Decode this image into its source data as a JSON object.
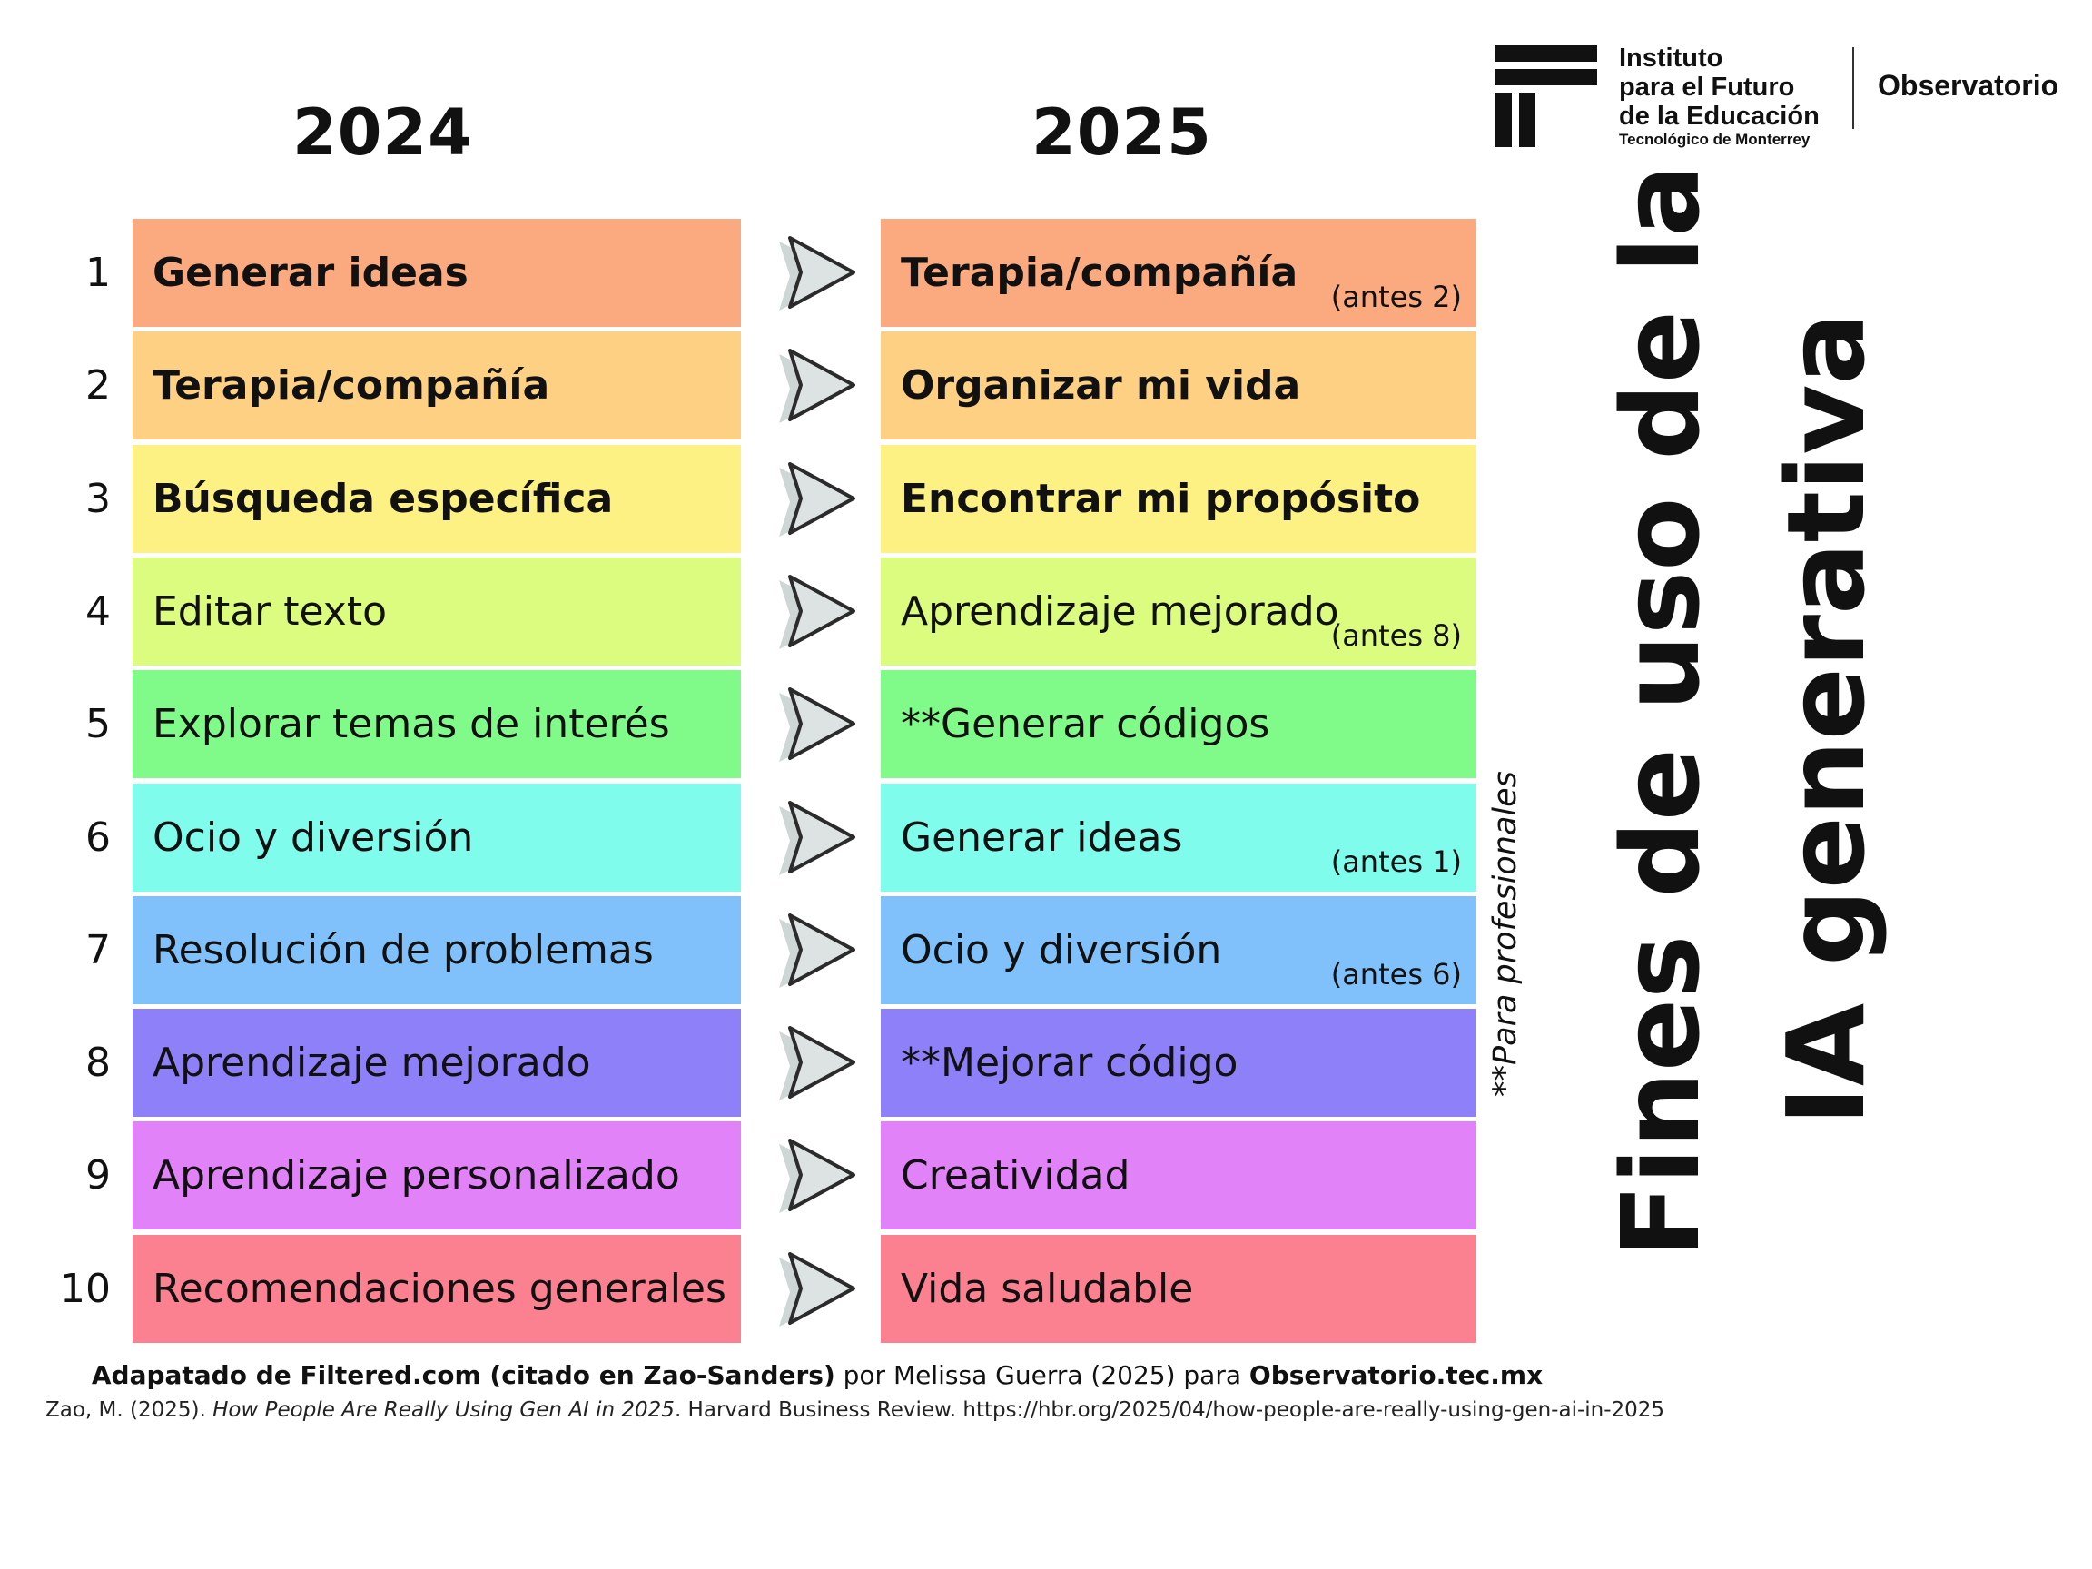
{
  "header": {
    "year_left": "2024",
    "year_right": "2025"
  },
  "logo": {
    "line1": "Instituto",
    "line2": "para el Futuro",
    "line3": "de la Educación",
    "sub": "Tecnológico de Monterrey",
    "observatorio": "Observatorio"
  },
  "title": {
    "line1": "Fines de uso de la",
    "line2": "IA generativa"
  },
  "side_note": "**Para profesionales",
  "rows": [
    {
      "rank": "1",
      "left": "Generar ideas",
      "right": "Terapia/compañía",
      "note": "(antes 2)",
      "color": "#fba97e"
    },
    {
      "rank": "2",
      "left": "Terapia/compañía",
      "right": "Organizar mi vida",
      "note": "",
      "color": "#fdd083"
    },
    {
      "rank": "3",
      "left": "Búsqueda específica",
      "right": "Encontrar mi propósito",
      "note": "",
      "color": "#fdf183"
    },
    {
      "rank": "4",
      "left": "Editar texto",
      "right": "Aprendizaje mejorado",
      "note": "(antes 8)",
      "color": "#dbfc7f"
    },
    {
      "rank": "5",
      "left": "Explorar temas de interés",
      "right": "**Generar códigos",
      "note": "",
      "color": "#80fb8a"
    },
    {
      "rank": "6",
      "left": "Ocio y diversión",
      "right": "Generar ideas",
      "note": "(antes 1)",
      "color": "#80fced"
    },
    {
      "rank": "7",
      "left": "Resolución de problemas",
      "right": "Ocio y diversión",
      "note": "(antes 6)",
      "color": "#80c1fc"
    },
    {
      "rank": "8",
      "left": "Aprendizaje mejorado",
      "right": "**Mejorar código",
      "note": "",
      "color": "#8d80f9"
    },
    {
      "rank": "9",
      "left": "Aprendizaje personalizado",
      "right": "Creatividad",
      "note": "",
      "color": "#e282f9"
    },
    {
      "rank": "10",
      "left": "Recomendaciones generales",
      "right": "Vida saludable",
      "note": "",
      "color": "#fc8190"
    }
  ],
  "footer": {
    "part1": "Adapatado de Filtered.com (citado en Zao-Sanders)",
    "part2": " por Melissa Guerra (2025) para ",
    "part3": "Observatorio.tec.mx",
    "citation_a": "Zao, M. (2025). ",
    "citation_title": "How People Are Really Using Gen AI in 2025",
    "citation_b": ". Harvard Business Review. https://hbr.org/2025/04/how-people-are-really-using-gen-ai-in-2025"
  }
}
